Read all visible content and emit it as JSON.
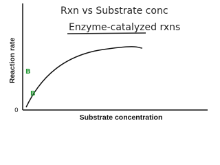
{
  "title_lines": [
    "Rxn vs Substrate conc",
    "Enzyme-catalyzed rxns"
  ],
  "y_axis_label": "Reaction rate",
  "x_axis_label": "Substrate concentration",
  "origin_label": "0",
  "annotations": [
    "B",
    "B"
  ]
}
